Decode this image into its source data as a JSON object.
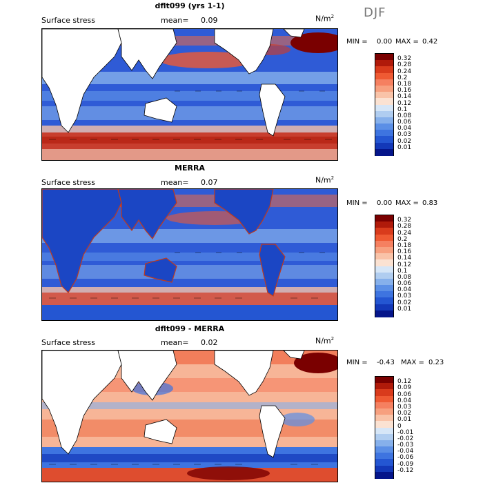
{
  "season": "DJF",
  "units": {
    "base": "N/m",
    "exp": "2"
  },
  "panels": [
    {
      "title": "dflt099 (yrs 1-1)",
      "field_label": "Surface stress",
      "mean_label": "mean=",
      "mean_value": "0.09",
      "min_label": "MIN =",
      "min_value": "0.00",
      "max_label": "MAX =",
      "max_value": "0.42",
      "colorbar": {
        "ticks": [
          "0.32",
          "0.28",
          "0.24",
          "0.2",
          "0.18",
          "0.16",
          "0.14",
          "0.12",
          "0.1",
          "0.08",
          "0.06",
          "0.04",
          "0.03",
          "0.02",
          "0.01"
        ],
        "colors": [
          "#7a0000",
          "#b01a0a",
          "#d93b1c",
          "#ef5a33",
          "#f58060",
          "#f7a07f",
          "#f9c3a8",
          "#fbe2d2",
          "#d6e6f7",
          "#b0cdf0",
          "#86b0eb",
          "#5b8fe6",
          "#3e74e0",
          "#2456d2",
          "#1338b8",
          "#05158a"
        ]
      }
    },
    {
      "title": "MERRA",
      "field_label": "Surface stress",
      "mean_label": "mean=",
      "mean_value": "0.07",
      "min_label": "MIN =",
      "min_value": "0.00",
      "max_label": "MAX =",
      "max_value": "0.83",
      "colorbar": {
        "ticks": [
          "0.32",
          "0.28",
          "0.24",
          "0.2",
          "0.18",
          "0.16",
          "0.14",
          "0.12",
          "0.1",
          "0.08",
          "0.06",
          "0.04",
          "0.03",
          "0.02",
          "0.01"
        ],
        "colors": [
          "#7a0000",
          "#b01a0a",
          "#d93b1c",
          "#ef5a33",
          "#f58060",
          "#f7a07f",
          "#f9c3a8",
          "#fbe2d2",
          "#d6e6f7",
          "#b0cdf0",
          "#86b0eb",
          "#5b8fe6",
          "#3e74e0",
          "#2456d2",
          "#1338b8",
          "#05158a"
        ]
      }
    },
    {
      "title": "dflt099 - MERRA",
      "field_label": "Surface stress",
      "mean_label": "mean=",
      "mean_value": "0.02",
      "min_label": "MIN =",
      "min_value": "-0.43",
      "max_label": "MAX =",
      "max_value": "0.23",
      "colorbar": {
        "ticks": [
          "0.12",
          "0.09",
          "0.06",
          "0.04",
          "0.03",
          "0.02",
          "0.01",
          "0",
          "-0.01",
          "-0.02",
          "-0.03",
          "-0.04",
          "-0.06",
          "-0.09",
          "-0.12"
        ],
        "colors": [
          "#7a0000",
          "#b01a0a",
          "#d93b1c",
          "#ef5a33",
          "#f58060",
          "#f7a07f",
          "#f9c3a8",
          "#fbe2d2",
          "#d6e6f7",
          "#b0cdf0",
          "#86b0eb",
          "#5b8fe6",
          "#3e74e0",
          "#2456d2",
          "#1338b8",
          "#05158a"
        ]
      }
    }
  ]
}
